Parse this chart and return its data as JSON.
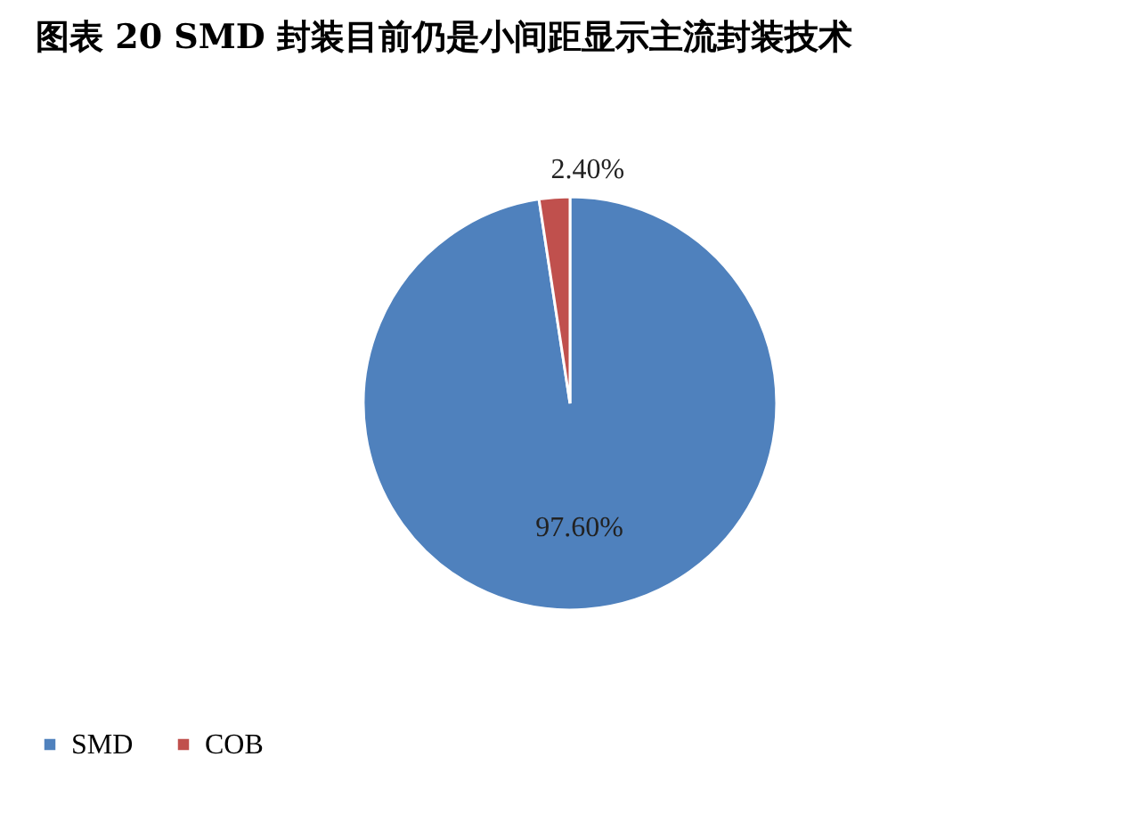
{
  "chart_data": {
    "type": "pie",
    "title": "图表 20 SMD 封装目前仍是小间距显示主流封装技术",
    "categories": [
      "SMD",
      "COB"
    ],
    "values": [
      97.6,
      2.4
    ],
    "colors": [
      "#4f81bd",
      "#c0504d"
    ],
    "value_labels": [
      "97.60%",
      "2.40%"
    ],
    "legend": "bottom"
  }
}
